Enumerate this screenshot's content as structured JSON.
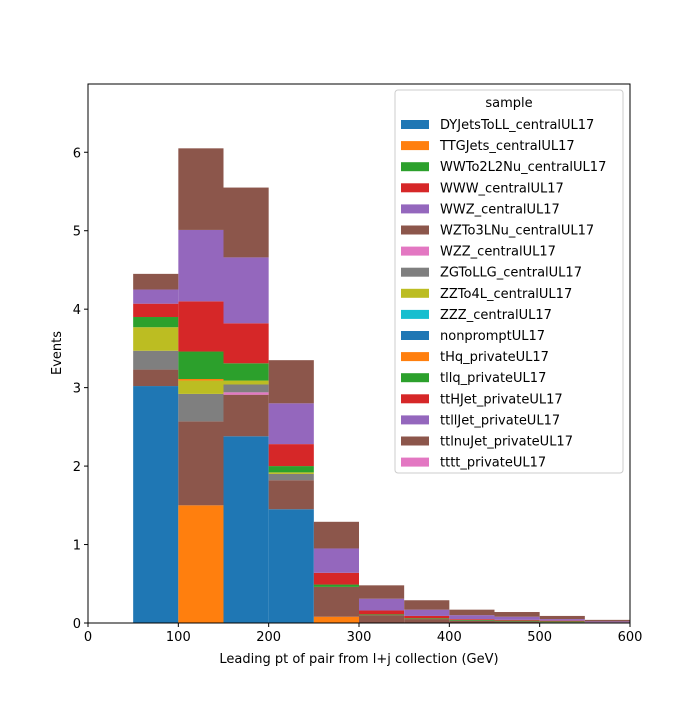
{
  "chart_data": {
    "type": "bar",
    "stacked": true,
    "xlabel": "Leading pt of pair from l+j collection (GeV)",
    "ylabel": "Events",
    "xlim": [
      0,
      600
    ],
    "ylim": [
      0,
      6.87
    ],
    "xticks": [
      0,
      100,
      200,
      300,
      400,
      500,
      600
    ],
    "yticks": [
      0,
      1,
      2,
      3,
      4,
      5,
      6
    ],
    "bin_edges": [
      50,
      100,
      150,
      200,
      250,
      300,
      350,
      400,
      450,
      500,
      550,
      600
    ],
    "legend_title": "sample",
    "legend_position": "top-right",
    "grid": false,
    "series": [
      {
        "name": "DYJetsToLL_centralUL17",
        "color": "#1f77b4",
        "values": [
          3.02,
          0,
          2.38,
          1.45,
          0,
          0,
          0,
          0,
          0,
          0,
          0
        ]
      },
      {
        "name": "TTGJets_centralUL17",
        "color": "#ff7f0e",
        "values": [
          0,
          1.5,
          0,
          0,
          0.08,
          0,
          0,
          0,
          0,
          0,
          0
        ]
      },
      {
        "name": "WWTo2L2Nu_centralUL17",
        "color": "#2ca02c",
        "values": [
          0,
          0,
          0,
          0,
          0,
          0,
          0,
          0,
          0,
          0,
          0
        ]
      },
      {
        "name": "WWW_centralUL17",
        "color": "#d62728",
        "values": [
          0,
          0,
          0,
          0,
          0,
          0,
          0,
          0,
          0,
          0,
          0
        ]
      },
      {
        "name": "WWZ_centralUL17",
        "color": "#9467bd",
        "values": [
          0,
          0,
          0,
          0,
          0,
          0,
          0,
          0,
          0,
          0,
          0
        ]
      },
      {
        "name": "WZTo3LNu_centralUL17",
        "color": "#8c564b",
        "values": [
          0.21,
          1.07,
          0.53,
          0.37,
          0.38,
          0.1,
          0.05,
          0.03,
          0.02,
          0.01,
          0.01
        ]
      },
      {
        "name": "WZZ_centralUL17",
        "color": "#e377c2",
        "values": [
          0,
          0,
          0.03,
          0,
          0,
          0,
          0,
          0,
          0,
          0,
          0
        ]
      },
      {
        "name": "ZGToLLG_centralUL17",
        "color": "#7f7f7f",
        "values": [
          0.24,
          0.35,
          0.1,
          0.08,
          0,
          0,
          0,
          0,
          0,
          0,
          0
        ]
      },
      {
        "name": "ZZTo4L_centralUL17",
        "color": "#bcbd22",
        "values": [
          0.3,
          0.17,
          0.05,
          0.02,
          0,
          0,
          0,
          0,
          0,
          0,
          0
        ]
      },
      {
        "name": "ZZZ_centralUL17",
        "color": "#17becf",
        "values": [
          0,
          0,
          0,
          0,
          0,
          0,
          0,
          0,
          0,
          0,
          0
        ]
      },
      {
        "name": "nonpromptUL17",
        "color": "#1f77b4",
        "values": [
          0,
          0,
          0,
          0,
          0,
          0,
          0,
          0,
          0,
          0,
          0
        ]
      },
      {
        "name": "tHq_privateUL17",
        "color": "#ff7f0e",
        "values": [
          0,
          0.02,
          0,
          0,
          0,
          0,
          0,
          0,
          0,
          0,
          0
        ]
      },
      {
        "name": "tllq_privateUL17",
        "color": "#2ca02c",
        "values": [
          0.13,
          0.35,
          0.22,
          0.08,
          0.03,
          0.01,
          0.01,
          0.01,
          0.01,
          0.01,
          0
        ]
      },
      {
        "name": "ttHJet_privateUL17",
        "color": "#d62728",
        "values": [
          0.17,
          0.64,
          0.51,
          0.28,
          0.15,
          0.05,
          0.03,
          0.01,
          0.01,
          0.01,
          0
        ]
      },
      {
        "name": "ttllJet_privateUL17",
        "color": "#9467bd",
        "values": [
          0.18,
          0.91,
          0.84,
          0.52,
          0.31,
          0.15,
          0.08,
          0.05,
          0.04,
          0.02,
          0.01
        ]
      },
      {
        "name": "ttlnuJet_privateUL17",
        "color": "#8c564b",
        "values": [
          0.2,
          1.04,
          0.89,
          0.55,
          0.34,
          0.17,
          0.12,
          0.07,
          0.06,
          0.04,
          0.02
        ]
      },
      {
        "name": "tttt_privateUL17",
        "color": "#e377c2",
        "values": [
          0,
          0,
          0,
          0,
          0,
          0,
          0,
          0,
          0,
          0,
          0
        ]
      }
    ]
  }
}
